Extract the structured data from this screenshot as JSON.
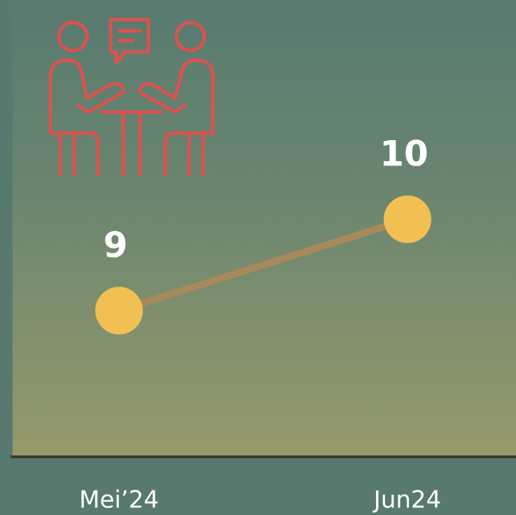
{
  "chart_data": {
    "type": "line",
    "categories": [
      "Mei’24",
      "Jun24"
    ],
    "values": [
      9,
      10
    ],
    "color": "#f2c052",
    "line_color": "#a68a5a",
    "ylim": [
      7.4,
      12.4
    ]
  }
}
